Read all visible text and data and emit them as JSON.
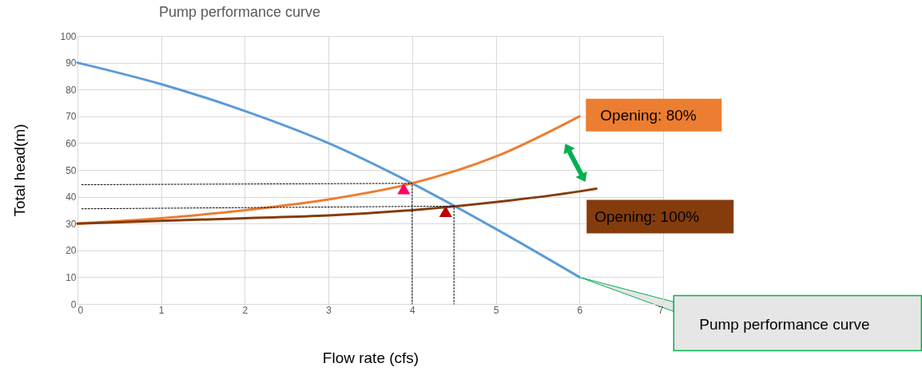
{
  "chart_data": {
    "type": "line",
    "title": "Pump performance curve",
    "xlabel": "Flow rate (cfs)",
    "ylabel": "Total head(m)",
    "xlim": [
      0,
      7
    ],
    "xticks": [
      0,
      1,
      2,
      3,
      4,
      5,
      6,
      7
    ],
    "ylim": [
      0,
      100
    ],
    "yticks": [
      0,
      10,
      20,
      30,
      40,
      50,
      60,
      70,
      80,
      90,
      100
    ],
    "grid": true,
    "legend": false,
    "series": [
      {
        "name": "Pump performance curve",
        "color": "#5b9bd5",
        "x": [
          0,
          1,
          2,
          3,
          4,
          5,
          6
        ],
        "values": [
          90,
          82,
          72,
          60,
          45,
          28,
          10
        ]
      },
      {
        "name": "Opening: 80%",
        "color": "#ed7d31",
        "x": [
          0,
          1,
          2,
          3,
          4,
          5,
          6
        ],
        "values": [
          30,
          32,
          35,
          39,
          45,
          55,
          70
        ]
      },
      {
        "name": "Opening: 100%",
        "color": "#843c0c",
        "x": [
          0,
          1,
          2,
          3,
          4,
          5,
          6,
          6.2
        ],
        "values": [
          30,
          31,
          32,
          33,
          35,
          38,
          42,
          43
        ]
      },
      {
        "type": "line",
        "color": "#000000",
        "line_style": "dotted",
        "x": [
          0.05,
          4,
          4
        ],
        "values": [
          44.5,
          45,
          0
        ]
      },
      {
        "type": "line",
        "color": "#000000",
        "line_style": "dotted",
        "x": [
          0.05,
          4.5,
          4.5
        ],
        "values": [
          35.5,
          36.5,
          0
        ]
      },
      {
        "type": "scatter",
        "marker": "triangle",
        "color": "#ff0066",
        "x": [
          3.9
        ],
        "values": [
          43
        ]
      },
      {
        "type": "scatter",
        "marker": "triangle",
        "color": "#c00000",
        "x": [
          4.4
        ],
        "values": [
          34.5
        ]
      }
    ]
  }
}
